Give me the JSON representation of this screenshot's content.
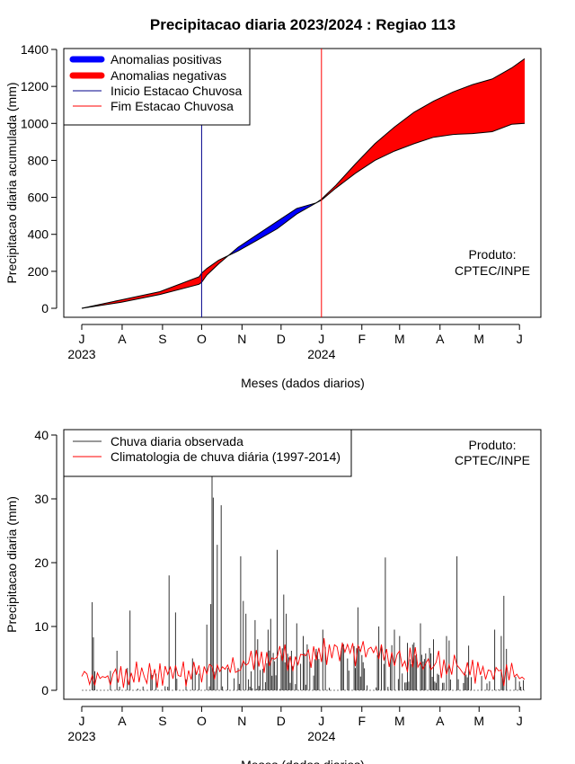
{
  "title": "Precipitacao diaria 2023/2024 : Regiao 113",
  "chart_data": [
    {
      "type": "area",
      "ylabel": "Precipitacao diaria acumulada (mm)",
      "xlabel": "Meses (dados diarios)",
      "ylim": [
        0,
        1400
      ],
      "yticks": [
        0,
        200,
        400,
        600,
        800,
        1000,
        1200,
        1400
      ],
      "month_ticks": [
        "J",
        "A",
        "S",
        "O",
        "N",
        "D",
        "J",
        "F",
        "M",
        "A",
        "M",
        "J"
      ],
      "year_labels": [
        "2023",
        "2024"
      ],
      "legend": [
        "Anomalias positivas",
        "Anomalias negativas",
        "Inicio Estacao Chuvosa",
        "Fim Estacao Chuvosa"
      ],
      "legend_position": "top-left",
      "product_label": [
        "Produto:",
        "CPTEC/INPE"
      ],
      "season_start_day": 92,
      "season_end_day": 184,
      "series": [
        {
          "name": "Observed accumulated",
          "points": [
            [
              0,
              0
            ],
            [
              30,
              32
            ],
            [
              60,
              75
            ],
            [
              90,
              130
            ],
            [
              92,
              140
            ],
            [
              96,
              180
            ],
            [
              105,
              240
            ],
            [
              120,
              330
            ],
            [
              135,
              400
            ],
            [
              150,
              470
            ],
            [
              165,
              540
            ],
            [
              180,
              570
            ],
            [
              184,
              585
            ],
            [
              195,
              650
            ],
            [
              210,
              730
            ],
            [
              225,
              800
            ],
            [
              240,
              850
            ],
            [
              255,
              890
            ],
            [
              270,
              925
            ],
            [
              285,
              940
            ],
            [
              300,
              945
            ],
            [
              315,
              955
            ],
            [
              330,
              995
            ],
            [
              340,
              1000
            ]
          ]
        },
        {
          "name": "Climatological accumulated",
          "points": [
            [
              0,
              0
            ],
            [
              30,
              45
            ],
            [
              60,
              90
            ],
            [
              90,
              170
            ],
            [
              92,
              190
            ],
            [
              96,
              215
            ],
            [
              105,
              260
            ],
            [
              120,
              310
            ],
            [
              135,
              370
            ],
            [
              150,
              430
            ],
            [
              165,
              510
            ],
            [
              180,
              570
            ],
            [
              184,
              590
            ],
            [
              195,
              665
            ],
            [
              210,
              780
            ],
            [
              225,
              890
            ],
            [
              240,
              980
            ],
            [
              255,
              1060
            ],
            [
              270,
              1120
            ],
            [
              285,
              1170
            ],
            [
              300,
              1210
            ],
            [
              315,
              1240
            ],
            [
              330,
              1300
            ],
            [
              340,
              1350
            ]
          ]
        }
      ]
    },
    {
      "type": "bar",
      "ylabel": "Precipitacao diaria (mm)",
      "xlabel": "Meses (dados diarios)",
      "ylim": [
        0,
        40
      ],
      "yticks": [
        0,
        10,
        20,
        30,
        40
      ],
      "month_ticks": [
        "J",
        "A",
        "S",
        "O",
        "N",
        "D",
        "J",
        "F",
        "M",
        "A",
        "M",
        "J"
      ],
      "year_labels": [
        "2023",
        "2024"
      ],
      "legend": [
        "Chuva diaria observada",
        "Climatologia de chuva diária (1997-2014)"
      ],
      "legend_position": "top-left",
      "product_label": [
        "Produto:",
        "CPTEC/INPE"
      ],
      "observed_peaks": [
        [
          8,
          13.8
        ],
        [
          9,
          8.3
        ],
        [
          27,
          6.2
        ],
        [
          37,
          12.5
        ],
        [
          53,
          3.2
        ],
        [
          57,
          2.6
        ],
        [
          67,
          18
        ],
        [
          72,
          12.2
        ],
        [
          85,
          5.0
        ],
        [
          90,
          2.6
        ],
        [
          96,
          10.3
        ],
        [
          99,
          13.5
        ],
        [
          100,
          33.5
        ],
        [
          101,
          30.2
        ],
        [
          104,
          22.8
        ],
        [
          107,
          29
        ],
        [
          112,
          3.5
        ],
        [
          122,
          21
        ],
        [
          124,
          14
        ],
        [
          126,
          12
        ],
        [
          133,
          11
        ],
        [
          135,
          8
        ],
        [
          143,
          9.5
        ],
        [
          145,
          11.2
        ],
        [
          150,
          22
        ],
        [
          155,
          15
        ],
        [
          157,
          12
        ],
        [
          165,
          10.5
        ],
        [
          170,
          8.5
        ],
        [
          180,
          6.5
        ],
        [
          185,
          9.5
        ],
        [
          200,
          7.5
        ],
        [
          212,
          13
        ],
        [
          228,
          10
        ],
        [
          233,
          20.8
        ],
        [
          240,
          9.5
        ],
        [
          244,
          8.5
        ],
        [
          255,
          7.5
        ],
        [
          260,
          10.5
        ],
        [
          262,
          4.5
        ],
        [
          270,
          8
        ],
        [
          280,
          8.5
        ],
        [
          282,
          7.8
        ],
        [
          288,
          21
        ],
        [
          297,
          7
        ],
        [
          317,
          9.5
        ],
        [
          322,
          8.5
        ],
        [
          324,
          14.8
        ],
        [
          326,
          6.5
        ]
      ],
      "climatology_baseline": {
        "days": [
          0,
          20,
          40,
          60,
          80,
          100,
          120,
          140,
          160,
          180,
          200,
          220,
          240,
          260,
          280,
          300,
          320,
          340
        ],
        "values": [
          2.0,
          2.3,
          2.5,
          2.5,
          2.8,
          3.4,
          4.0,
          4.6,
          5.2,
          5.5,
          6.3,
          6.0,
          5.4,
          4.6,
          3.7,
          2.8,
          2.5,
          2.0
        ]
      }
    }
  ]
}
